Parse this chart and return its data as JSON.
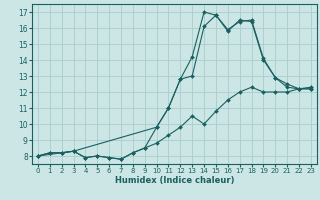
{
  "xlabel": "Humidex (Indice chaleur)",
  "xlim": [
    -0.5,
    23.5
  ],
  "ylim": [
    7.5,
    17.5
  ],
  "xticks": [
    0,
    1,
    2,
    3,
    4,
    5,
    6,
    7,
    8,
    9,
    10,
    11,
    12,
    13,
    14,
    15,
    16,
    17,
    18,
    19,
    20,
    21,
    22,
    23
  ],
  "yticks": [
    8,
    9,
    10,
    11,
    12,
    13,
    14,
    15,
    16,
    17
  ],
  "bg_color": "#cce5e5",
  "grid_color": "#aacccc",
  "line_color": "#1a6060",
  "line1_x": [
    0,
    1,
    2,
    3,
    4,
    5,
    6,
    7,
    8,
    9,
    10,
    11,
    12,
    13,
    14,
    15,
    16,
    17,
    18,
    19,
    20,
    21,
    22,
    23
  ],
  "line1_y": [
    8.0,
    8.2,
    8.2,
    8.3,
    7.9,
    8.0,
    7.9,
    7.8,
    8.2,
    8.5,
    8.8,
    9.3,
    9.8,
    10.5,
    10.0,
    10.8,
    11.5,
    12.0,
    12.3,
    12.0,
    12.0,
    12.0,
    12.2,
    12.3
  ],
  "line2_x": [
    0,
    1,
    2,
    3,
    4,
    5,
    6,
    7,
    8,
    9,
    10,
    11,
    12,
    13,
    14,
    15,
    16,
    17,
    18,
    19,
    20,
    21,
    22,
    23
  ],
  "line2_y": [
    8.0,
    8.2,
    8.2,
    8.3,
    7.9,
    8.0,
    7.9,
    7.8,
    8.2,
    8.5,
    9.8,
    11.0,
    12.8,
    13.0,
    16.1,
    16.8,
    15.9,
    16.4,
    16.5,
    14.1,
    12.9,
    12.3,
    12.2,
    12.2
  ],
  "line3_x": [
    0,
    3,
    10,
    11,
    12,
    13,
    14,
    15,
    16,
    17,
    18,
    19,
    20,
    21,
    22,
    23
  ],
  "line3_y": [
    8.0,
    8.3,
    9.8,
    11.0,
    12.8,
    14.2,
    17.0,
    16.8,
    15.8,
    16.5,
    16.4,
    14.0,
    12.9,
    12.5,
    12.2,
    12.2
  ]
}
